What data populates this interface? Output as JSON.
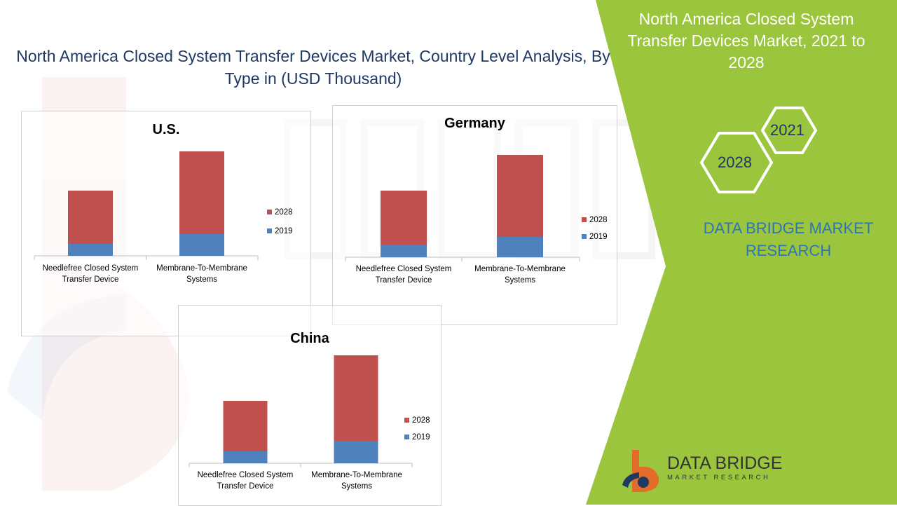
{
  "main_title": "North America Closed System Transfer Devices Market, Country Level Analysis, By Type in  (USD Thousand)",
  "panel": {
    "title": "North America Closed System Transfer Devices Market, 2021 to 2028",
    "hex_top": "2021",
    "hex_bottom": "2028",
    "brand": "DATA BRIDGE MARKET RESEARCH"
  },
  "logo": {
    "name": "DATA BRIDGE",
    "sub": "MARKET RESEARCH"
  },
  "colors": {
    "series_2028": "#c0504d",
    "series_2019": "#4f81bd",
    "panel_green": "#9bc53d",
    "title_navy": "#1f3864"
  },
  "chart_data": [
    {
      "type": "bar",
      "stacked": true,
      "title": "U.S.",
      "categories": [
        "Needlefree  Closed System Transfer Device",
        "Membrane-To-Membrane Systems"
      ],
      "series": [
        {
          "name": "2019",
          "values": [
            17,
            31
          ]
        },
        {
          "name": "2028",
          "values": [
            76,
            118
          ]
        }
      ],
      "legend": "right",
      "grid": false
    },
    {
      "type": "bar",
      "stacked": true,
      "title": "Germany",
      "categories": [
        "Needlefree  Closed System Transfer Device",
        "Membrane-To-Membrane Systems"
      ],
      "series": [
        {
          "name": "2019",
          "values": [
            18,
            29
          ]
        },
        {
          "name": "2028",
          "values": [
            77,
            117
          ]
        }
      ],
      "legend": "right",
      "grid": false
    },
    {
      "type": "bar",
      "stacked": true,
      "title": "China",
      "categories": [
        "Needlefree  Closed System Transfer Device",
        "Membrane-To-Membrane Systems"
      ],
      "series": [
        {
          "name": "2019",
          "values": [
            17,
            32
          ]
        },
        {
          "name": "2028",
          "values": [
            72,
            122
          ]
        }
      ],
      "legend": "right",
      "grid": false
    }
  ]
}
